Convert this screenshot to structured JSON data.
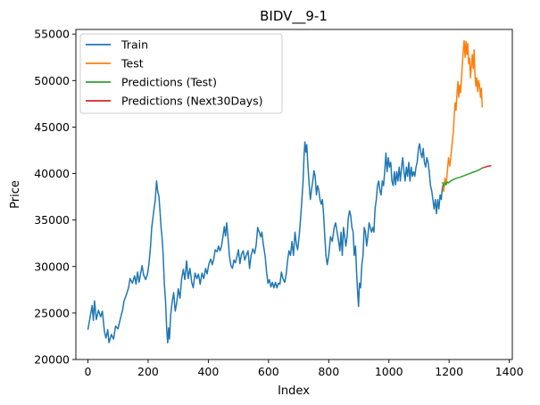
{
  "chart_data": {
    "type": "line",
    "title": "BIDV__9-1",
    "xlabel": "Index",
    "ylabel": "Price",
    "xlim": [
      -40,
      1410
    ],
    "ylim": [
      20000,
      55500
    ],
    "xticks": [
      0,
      200,
      400,
      600,
      800,
      1000,
      1200,
      1400
    ],
    "yticks": [
      20000,
      25000,
      30000,
      35000,
      40000,
      45000,
      50000,
      55000
    ],
    "grid": false,
    "legend_position": "top-left",
    "series": [
      {
        "name": "Train",
        "color": "#1f77b4",
        "points": [
          [
            0,
            23200
          ],
          [
            8,
            24700
          ],
          [
            14,
            25800
          ],
          [
            18,
            24200
          ],
          [
            22,
            26300
          ],
          [
            28,
            24300
          ],
          [
            35,
            25300
          ],
          [
            42,
            24600
          ],
          [
            48,
            25200
          ],
          [
            55,
            23000
          ],
          [
            60,
            22300
          ],
          [
            66,
            23200
          ],
          [
            70,
            21800
          ],
          [
            78,
            22700
          ],
          [
            85,
            22200
          ],
          [
            92,
            23600
          ],
          [
            100,
            23300
          ],
          [
            108,
            24400
          ],
          [
            115,
            25300
          ],
          [
            120,
            26300
          ],
          [
            128,
            27000
          ],
          [
            135,
            27700
          ],
          [
            140,
            28700
          ],
          [
            148,
            28200
          ],
          [
            155,
            29000
          ],
          [
            160,
            28100
          ],
          [
            165,
            29400
          ],
          [
            170,
            28300
          ],
          [
            175,
            29200
          ],
          [
            180,
            30100
          ],
          [
            185,
            29100
          ],
          [
            192,
            28600
          ],
          [
            198,
            29200
          ],
          [
            203,
            30300
          ],
          [
            208,
            32100
          ],
          [
            212,
            34200
          ],
          [
            216,
            35200
          ],
          [
            220,
            36300
          ],
          [
            224,
            37200
          ],
          [
            228,
            39200
          ],
          [
            232,
            38100
          ],
          [
            236,
            37500
          ],
          [
            239,
            36200
          ],
          [
            243,
            34300
          ],
          [
            246,
            33200
          ],
          [
            250,
            31300
          ],
          [
            254,
            28200
          ],
          [
            258,
            26200
          ],
          [
            262,
            23200
          ],
          [
            265,
            21800
          ],
          [
            268,
            23400
          ],
          [
            271,
            22200
          ],
          [
            275,
            24800
          ],
          [
            280,
            26200
          ],
          [
            285,
            27200
          ],
          [
            290,
            25200
          ],
          [
            295,
            26100
          ],
          [
            300,
            27600
          ],
          [
            306,
            26600
          ],
          [
            311,
            28600
          ],
          [
            317,
            29700
          ],
          [
            322,
            28600
          ],
          [
            328,
            30600
          ],
          [
            333,
            28700
          ],
          [
            339,
            29800
          ],
          [
            345,
            28300
          ],
          [
            350,
            27700
          ],
          [
            356,
            29300
          ],
          [
            362,
            28700
          ],
          [
            367,
            29200
          ],
          [
            373,
            28100
          ],
          [
            379,
            29300
          ],
          [
            385,
            28700
          ],
          [
            391,
            29800
          ],
          [
            396,
            29200
          ],
          [
            402,
            30300
          ],
          [
            408,
            30800
          ],
          [
            413,
            30200
          ],
          [
            418,
            30800
          ],
          [
            423,
            31800
          ],
          [
            429,
            31600
          ],
          [
            434,
            32200
          ],
          [
            439,
            31700
          ],
          [
            444,
            32200
          ],
          [
            449,
            33300
          ],
          [
            453,
            34300
          ],
          [
            457,
            33300
          ],
          [
            461,
            34700
          ],
          [
            465,
            33300
          ],
          [
            470,
            31200
          ],
          [
            475,
            30100
          ],
          [
            480,
            29800
          ],
          [
            485,
            30700
          ],
          [
            490,
            30400
          ],
          [
            496,
            31200
          ],
          [
            500,
            31800
          ],
          [
            505,
            30300
          ],
          [
            510,
            31300
          ],
          [
            516,
            31700
          ],
          [
            521,
            30700
          ],
          [
            526,
            31200
          ],
          [
            532,
            31700
          ],
          [
            537,
            29800
          ],
          [
            542,
            31200
          ],
          [
            548,
            31900
          ],
          [
            554,
            31400
          ],
          [
            559,
            32300
          ],
          [
            564,
            34200
          ],
          [
            569,
            33700
          ],
          [
            574,
            33200
          ],
          [
            578,
            33700
          ],
          [
            583,
            32300
          ],
          [
            589,
            31100
          ],
          [
            594,
            29300
          ],
          [
            598,
            28200
          ],
          [
            603,
            28600
          ],
          [
            608,
            27800
          ],
          [
            613,
            28300
          ],
          [
            618,
            27700
          ],
          [
            623,
            28300
          ],
          [
            628,
            27700
          ],
          [
            633,
            28200
          ],
          [
            638,
            28100
          ],
          [
            643,
            29400
          ],
          [
            648,
            28700
          ],
          [
            654,
            28300
          ],
          [
            659,
            29200
          ],
          [
            664,
            30800
          ],
          [
            668,
            31700
          ],
          [
            673,
            31200
          ],
          [
            678,
            32700
          ],
          [
            683,
            31200
          ],
          [
            688,
            33700
          ],
          [
            693,
            32300
          ],
          [
            697,
            31800
          ],
          [
            702,
            33300
          ],
          [
            707,
            35300
          ],
          [
            711,
            37300
          ],
          [
            715,
            39200
          ],
          [
            718,
            41800
          ],
          [
            721,
            43400
          ],
          [
            724,
            42300
          ],
          [
            727,
            43100
          ],
          [
            731,
            40800
          ],
          [
            735,
            38800
          ],
          [
            739,
            37200
          ],
          [
            743,
            38300
          ],
          [
            747,
            39200
          ],
          [
            751,
            40300
          ],
          [
            755,
            39700
          ],
          [
            759,
            37700
          ],
          [
            763,
            38700
          ],
          [
            767,
            38200
          ],
          [
            771,
            37200
          ],
          [
            775,
            36700
          ],
          [
            779,
            37200
          ],
          [
            783,
            35700
          ],
          [
            787,
            33200
          ],
          [
            791,
            31200
          ],
          [
            795,
            30200
          ],
          [
            800,
            31200
          ],
          [
            806,
            33200
          ],
          [
            812,
            32700
          ],
          [
            818,
            34200
          ],
          [
            823,
            34700
          ],
          [
            828,
            33700
          ],
          [
            833,
            32700
          ],
          [
            837,
            31700
          ],
          [
            841,
            33700
          ],
          [
            845,
            31200
          ],
          [
            849,
            34200
          ],
          [
            853,
            33200
          ],
          [
            857,
            32200
          ],
          [
            861,
            33200
          ],
          [
            865,
            35200
          ],
          [
            869,
            36000
          ],
          [
            873,
            35500
          ],
          [
            877,
            34200
          ],
          [
            881,
            33700
          ],
          [
            885,
            31200
          ],
          [
            889,
            32200
          ],
          [
            893,
            29200
          ],
          [
            896,
            27200
          ],
          [
            899,
            25700
          ],
          [
            902,
            28200
          ],
          [
            906,
            27700
          ],
          [
            910,
            30200
          ],
          [
            914,
            31200
          ],
          [
            918,
            34200
          ],
          [
            922,
            33700
          ],
          [
            926,
            32200
          ],
          [
            930,
            33200
          ],
          [
            934,
            34700
          ],
          [
            938,
            34200
          ],
          [
            942,
            33700
          ],
          [
            946,
            34200
          ],
          [
            950,
            33700
          ],
          [
            954,
            36200
          ],
          [
            958,
            37200
          ],
          [
            962,
            38700
          ],
          [
            966,
            39200
          ],
          [
            970,
            38200
          ],
          [
            974,
            37700
          ],
          [
            978,
            39200
          ],
          [
            982,
            38700
          ],
          [
            986,
            40200
          ],
          [
            990,
            42200
          ],
          [
            994,
            40200
          ],
          [
            998,
            41700
          ],
          [
            1002,
            40700
          ],
          [
            1006,
            41200
          ],
          [
            1010,
            39200
          ],
          [
            1014,
            38700
          ],
          [
            1018,
            40200
          ],
          [
            1022,
            38800
          ],
          [
            1026,
            40200
          ],
          [
            1030,
            39200
          ],
          [
            1034,
            40700
          ],
          [
            1038,
            39200
          ],
          [
            1042,
            40700
          ],
          [
            1046,
            41700
          ],
          [
            1050,
            40200
          ],
          [
            1054,
            39200
          ],
          [
            1058,
            40700
          ],
          [
            1062,
            39700
          ],
          [
            1066,
            41200
          ],
          [
            1070,
            39200
          ],
          [
            1074,
            40700
          ],
          [
            1078,
            39700
          ],
          [
            1082,
            40200
          ],
          [
            1086,
            39700
          ],
          [
            1090,
            40700
          ],
          [
            1094,
            41200
          ],
          [
            1098,
            42700
          ],
          [
            1102,
            43200
          ],
          [
            1106,
            42200
          ],
          [
            1110,
            41700
          ],
          [
            1114,
            42700
          ],
          [
            1118,
            41200
          ],
          [
            1122,
            40700
          ],
          [
            1126,
            41700
          ],
          [
            1130,
            41200
          ],
          [
            1134,
            40200
          ],
          [
            1138,
            38700
          ],
          [
            1142,
            38200
          ],
          [
            1146,
            37200
          ],
          [
            1150,
            36200
          ],
          [
            1154,
            37200
          ],
          [
            1158,
            35700
          ],
          [
            1162,
            37200
          ],
          [
            1166,
            36200
          ],
          [
            1170,
            37700
          ],
          [
            1174,
            37200
          ],
          [
            1178,
            38700
          ]
        ]
      },
      {
        "name": "Test",
        "color": "#ff7f0e",
        "points": [
          [
            1178,
            38700
          ],
          [
            1182,
            38100
          ],
          [
            1186,
            39500
          ],
          [
            1190,
            38800
          ],
          [
            1194,
            40200
          ],
          [
            1198,
            41700
          ],
          [
            1202,
            40800
          ],
          [
            1206,
            41900
          ],
          [
            1210,
            43200
          ],
          [
            1214,
            44500
          ],
          [
            1217,
            46200
          ],
          [
            1220,
            47600
          ],
          [
            1223,
            46800
          ],
          [
            1226,
            48400
          ],
          [
            1229,
            49900
          ],
          [
            1232,
            48200
          ],
          [
            1235,
            49500
          ],
          [
            1238,
            48700
          ],
          [
            1241,
            50200
          ],
          [
            1244,
            51700
          ],
          [
            1247,
            53200
          ],
          [
            1250,
            54300
          ],
          [
            1253,
            52500
          ],
          [
            1256,
            54200
          ],
          [
            1259,
            52800
          ],
          [
            1262,
            54000
          ],
          [
            1265,
            51800
          ],
          [
            1268,
            52400
          ],
          [
            1271,
            50300
          ],
          [
            1274,
            51600
          ],
          [
            1277,
            52800
          ],
          [
            1280,
            51300
          ],
          [
            1283,
            53300
          ],
          [
            1286,
            50500
          ],
          [
            1289,
            49400
          ],
          [
            1292,
            50300
          ],
          [
            1295,
            48800
          ],
          [
            1298,
            50000
          ],
          [
            1301,
            49500
          ],
          [
            1304,
            48200
          ],
          [
            1307,
            49200
          ],
          [
            1310,
            47100
          ]
        ]
      },
      {
        "name": "Predictions (Test)",
        "color": "#2ca02c",
        "points": [
          [
            1178,
            39100
          ],
          [
            1182,
            38600
          ],
          [
            1186,
            39000
          ],
          [
            1190,
            38800
          ],
          [
            1194,
            39100
          ],
          [
            1198,
            39000
          ],
          [
            1205,
            39200
          ],
          [
            1220,
            39450
          ],
          [
            1240,
            39650
          ],
          [
            1260,
            39900
          ],
          [
            1280,
            40150
          ],
          [
            1300,
            40400
          ],
          [
            1310,
            40600
          ]
        ]
      },
      {
        "name": "Predictions (Next30Days)",
        "color": "#d62728",
        "points": [
          [
            1310,
            40600
          ],
          [
            1320,
            40700
          ],
          [
            1330,
            40800
          ],
          [
            1340,
            40850
          ]
        ]
      }
    ]
  }
}
